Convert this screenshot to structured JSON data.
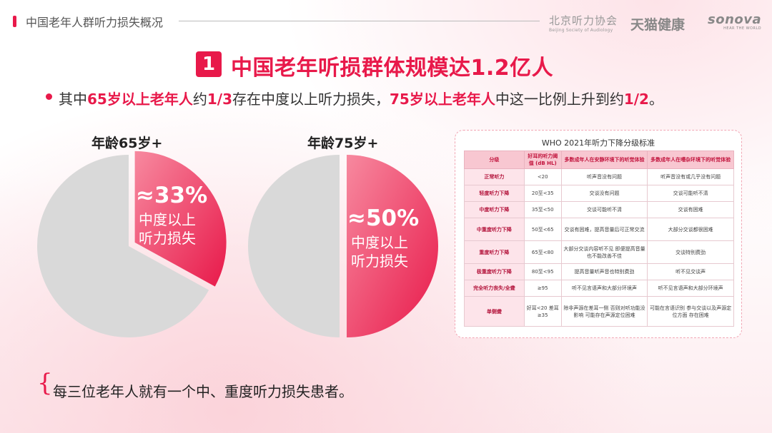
{
  "header": {
    "title": "中国老年人群听力损失概况",
    "logos": [
      {
        "main": "北京听力协会",
        "sub": "Beijing Society of Audiology"
      },
      {
        "main": "天猫健康",
        "sub": ""
      },
      {
        "main": "sonova",
        "sub": "HEAR THE WORLD"
      }
    ]
  },
  "title": {
    "number": "1",
    "text": "中国老年听损群体规模达1.2亿人"
  },
  "subtitle": {
    "p1": "其中",
    "h1": "65岁以上老年人",
    "p2": "约",
    "h2": "1/3",
    "p3": "存在中度以上听力损失，",
    "h3": "75岁以上老年人",
    "p4": "中这一比例上升到约",
    "h4": "1/2",
    "p5": "。"
  },
  "chart_data": [
    {
      "type": "pie",
      "title": "年龄65岁+",
      "slices": [
        {
          "label": "中度以上听力损失",
          "value": 33,
          "display": "≈33%",
          "color": "#ee3d62"
        },
        {
          "label": "",
          "value": 67,
          "color": "#d9d9d9"
        }
      ]
    },
    {
      "type": "pie",
      "title": "年龄75岁+",
      "slices": [
        {
          "label": "中度以上听力损失",
          "value": 50,
          "display": "≈50%",
          "color": "#ee3d62"
        },
        {
          "label": "",
          "value": 50,
          "color": "#d9d9d9"
        }
      ]
    }
  ],
  "pie_desc": {
    "line1": "中度以上",
    "line2": "听力损失"
  },
  "who_table": {
    "title": "WHO 2021年听力下降分级标准",
    "headers": [
      "分级",
      "好耳的听力阈值 (dB HL)",
      "多数成年人在安静环境下的听觉体验",
      "多数成年人在嘈杂环境下的听觉体验"
    ],
    "rows": [
      [
        "正常听力",
        "<20",
        "听声音没有问题",
        "听声音没有或几乎没有问题"
      ],
      [
        "轻度听力下降",
        "20至<35",
        "交谈没有问题",
        "交谈可能听不清"
      ],
      [
        "中度听力下降",
        "35至<50",
        "交谈可能听不清",
        "交谈有困难"
      ],
      [
        "中重度听力下降",
        "50至<65",
        "交谈有困难，提高音量后可正常交流",
        "大部分交谈都很困难"
      ],
      [
        "重度听力下降",
        "65至<80",
        "大部分交谈内容听不见 即便提高音量也不能改善不佳",
        "交谈特别费劲"
      ],
      [
        "极重度听力下降",
        "80至<95",
        "提高音量听声音也特别费劲",
        "听不见交谈声"
      ],
      [
        "完全听力丧失/全聋",
        "≥95",
        "听不见言语声和大部分环境声",
        "听不见言语声和大部分环境声"
      ],
      [
        "单侧聋",
        "好耳<20 差耳≥35",
        "除非声源在差耳一侧 否则对听功能没影响 可能存在声源定位困难",
        "可能在言语识别 参与交谈以及声源定位方面 存在困难"
      ]
    ]
  },
  "bottom": {
    "brace": "{",
    "text": "每三位老年人就有一个中、重度听力损失患者。"
  }
}
